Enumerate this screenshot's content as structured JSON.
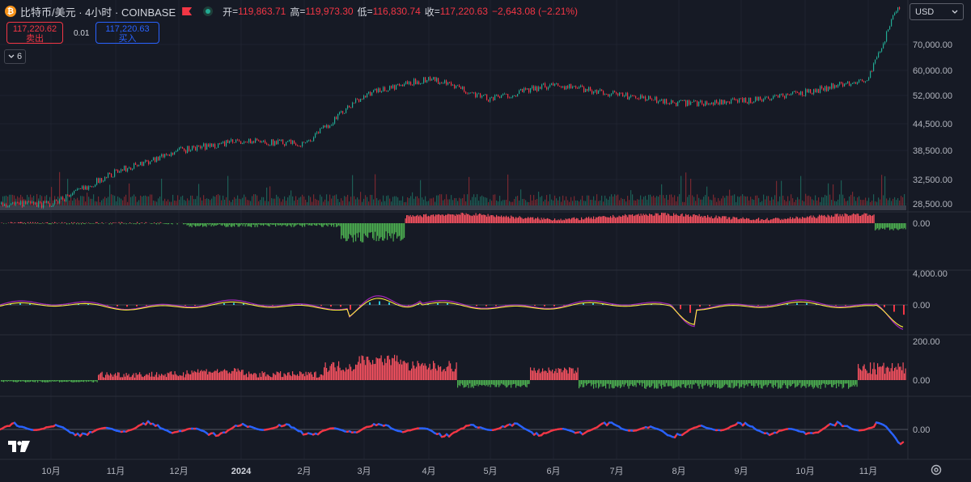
{
  "header": {
    "symbol_title": "比特币/美元 · 4小时 · COINBASE",
    "ohlc": [
      {
        "key": "开",
        "value": "119,863.71"
      },
      {
        "key": "高",
        "value": "119,973.30"
      },
      {
        "key": "低",
        "value": "116,830.74"
      },
      {
        "key": "收",
        "value": "117,220.63"
      }
    ],
    "change": "−2,643.08 (−2.21%)"
  },
  "trade": {
    "sell_price": "117,220.62",
    "sell_label": "卖出",
    "spread": "0.01",
    "buy_price": "117,220.63",
    "buy_label": "买入"
  },
  "indicators_toggle": {
    "count": "6"
  },
  "currency_select": {
    "value": "USD"
  },
  "price_axis": {
    "main": [
      "70,000.00",
      "60,000.00",
      "52,000.00",
      "44,500.00",
      "38,500.00",
      "32,500.00",
      "28,500.00"
    ],
    "pane1": [
      "0.00"
    ],
    "pane2": [
      "4,000.00",
      "0.00"
    ],
    "pane3": [
      "200.00",
      "0.00"
    ],
    "pane4": [
      "0.00"
    ]
  },
  "time_axis": [
    "10月",
    "11月",
    "12月",
    "2024",
    "2月",
    "3月",
    "4月",
    "5月",
    "6月",
    "7月",
    "8月",
    "9月",
    "10月",
    "11月"
  ],
  "chart_data": {
    "type": "line",
    "title": "",
    "xlabel": "",
    "ylabel": "",
    "x_start": "10月",
    "x_end": "11月",
    "y_scale": "log",
    "ylim": [
      26000,
      125000
    ],
    "series": [
      {
        "values_by_month": [
          {
            "x": "10月",
            "y": 27500
          },
          {
            "x": "11月",
            "y": 35000
          },
          {
            "x": "12月",
            "y": 41000
          },
          {
            "x": "2024",
            "y": 44000
          },
          {
            "x": "2月",
            "y": 43000
          },
          {
            "x": "3月",
            "y": 62000
          },
          {
            "x": "4月",
            "y": 70000
          },
          {
            "x": "5月",
            "y": 60000
          },
          {
            "x": "6月",
            "y": 67000
          },
          {
            "x": "7月",
            "y": 62000
          },
          {
            "x": "8月",
            "y": 58000
          },
          {
            "x": "9月",
            "y": 59000
          },
          {
            "x": "10月",
            "y": 63000
          },
          {
            "x": "11月",
            "y": 70000
          },
          {
            "x": "11月",
            "y": 117220
          }
        ]
      }
    ],
    "colors": {
      "up": "#22ab94",
      "down": "#f23645",
      "indicator_a": "#f7525f",
      "indicator_b": "#4caf50",
      "line_purple": "#9c27b0",
      "line_yellow": "#ffeb3b",
      "line_blue": "#2962ff"
    }
  }
}
